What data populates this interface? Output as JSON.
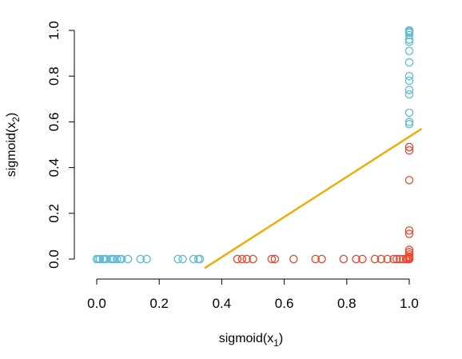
{
  "chart_data": {
    "type": "scatter",
    "xlabel_base": "sigmoid(x",
    "xlabel_sub": "1",
    "xlabel_close": ")",
    "ylabel_base": "sigmoid(x",
    "ylabel_sub": "2",
    "ylabel_close": ")",
    "xlim": [
      0,
      1
    ],
    "ylim": [
      0,
      1
    ],
    "x_ticks": [
      0.0,
      0.2,
      0.4,
      0.6,
      0.8,
      1.0
    ],
    "x_tick_labels": [
      "0.0",
      "0.2",
      "0.4",
      "0.6",
      "0.8",
      "1.0"
    ],
    "y_ticks": [
      0.0,
      0.2,
      0.4,
      0.6,
      0.8,
      1.0
    ],
    "y_tick_labels": [
      "0.0",
      "0.2",
      "0.4",
      "0.6",
      "0.8",
      "1.0"
    ],
    "grid": false,
    "colors": {
      "class_a": "#5bbcd6",
      "class_b": "#f0452b",
      "boundary": "#f2a900"
    },
    "series": [
      {
        "color": "#5bbcd6",
        "points": [
          [
            0.0,
            0.0
          ],
          [
            0.005,
            0.0
          ],
          [
            0.01,
            0.0
          ],
          [
            0.02,
            0.0
          ],
          [
            0.025,
            0.0
          ],
          [
            0.03,
            0.0
          ],
          [
            0.045,
            0.0
          ],
          [
            0.05,
            0.0
          ],
          [
            0.055,
            0.0
          ],
          [
            0.065,
            0.0
          ],
          [
            0.075,
            0.0
          ],
          [
            0.08,
            0.0
          ],
          [
            0.1,
            0.0
          ],
          [
            0.14,
            0.0
          ],
          [
            0.16,
            0.0
          ],
          [
            0.26,
            0.0
          ],
          [
            0.275,
            0.0
          ],
          [
            0.31,
            0.0
          ],
          [
            0.325,
            0.0
          ],
          [
            0.33,
            0.0
          ],
          [
            1.0,
            1.0
          ],
          [
            1.0,
            0.995
          ],
          [
            1.0,
            0.99
          ],
          [
            1.0,
            0.98
          ],
          [
            1.0,
            0.96
          ],
          [
            1.0,
            0.95
          ],
          [
            1.0,
            0.91
          ],
          [
            1.0,
            0.86
          ],
          [
            1.0,
            0.8
          ],
          [
            1.0,
            0.78
          ],
          [
            1.0,
            0.74
          ],
          [
            1.0,
            0.72
          ],
          [
            1.0,
            0.64
          ],
          [
            1.0,
            0.6
          ],
          [
            1.0,
            0.59
          ]
        ]
      },
      {
        "color": "#f0452b",
        "points": [
          [
            0.45,
            0.0
          ],
          [
            0.465,
            0.0
          ],
          [
            0.48,
            0.0
          ],
          [
            0.5,
            0.0
          ],
          [
            0.56,
            0.0
          ],
          [
            0.57,
            0.0
          ],
          [
            0.63,
            0.0
          ],
          [
            0.7,
            0.0
          ],
          [
            0.72,
            0.0
          ],
          [
            0.79,
            0.0
          ],
          [
            0.83,
            0.0
          ],
          [
            0.85,
            0.0
          ],
          [
            0.89,
            0.0
          ],
          [
            0.91,
            0.0
          ],
          [
            0.93,
            0.0
          ],
          [
            0.95,
            0.0
          ],
          [
            0.96,
            0.0
          ],
          [
            0.97,
            0.0
          ],
          [
            0.98,
            0.0
          ],
          [
            0.99,
            0.0
          ],
          [
            0.995,
            0.0
          ],
          [
            1.0,
            0.0
          ],
          [
            1.0,
            0.005
          ],
          [
            1.0,
            0.01
          ],
          [
            1.0,
            0.02
          ],
          [
            1.0,
            0.03
          ],
          [
            1.0,
            0.04
          ],
          [
            1.0,
            0.11
          ],
          [
            1.0,
            0.125
          ],
          [
            1.0,
            0.345
          ],
          [
            1.0,
            0.475
          ],
          [
            1.0,
            0.49
          ]
        ]
      }
    ],
    "boundary_line": {
      "x": [
        0.345,
        1.04
      ],
      "y": [
        -0.04,
        0.57
      ]
    }
  }
}
